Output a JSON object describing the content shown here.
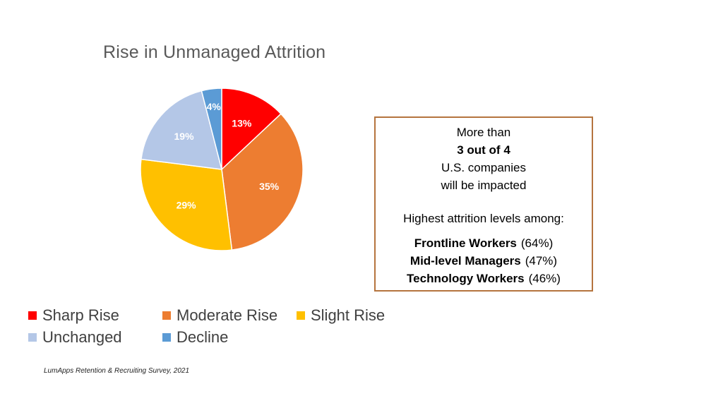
{
  "chart_data": {
    "type": "pie",
    "title": "Rise in Unmanaged Attrition",
    "categories": [
      "Sharp Rise",
      "Moderate Rise",
      "Slight Rise",
      "Unchanged",
      "Decline"
    ],
    "values": [
      13,
      35,
      29,
      19,
      4
    ],
    "labels": [
      "13%",
      "35%",
      "29%",
      "19%",
      "4%"
    ],
    "colors": [
      "#ff0000",
      "#ed7d31",
      "#ffc000",
      "#b4c7e7",
      "#5b9bd5"
    ],
    "label_colors": [
      "#ffffff",
      "#ffffff",
      "#ffffff",
      "#ffffff",
      "#ffffff"
    ],
    "start_angle_deg": 0,
    "direction": "clockwise",
    "legend_position": "bottom"
  },
  "callout": {
    "line1": "More than",
    "line2": "3 out of 4",
    "line3": "U.S. companies",
    "line4": "will be impacted",
    "line5": "Highest attrition levels among:",
    "rows": [
      {
        "label": "Frontline Workers",
        "value": "(64%)"
      },
      {
        "label": "Mid-level Managers",
        "value": "(47%)"
      },
      {
        "label": "Technology Workers",
        "value": "(46%)"
      }
    ]
  },
  "source": "LumApps Retention & Recruiting Survey, 2021"
}
